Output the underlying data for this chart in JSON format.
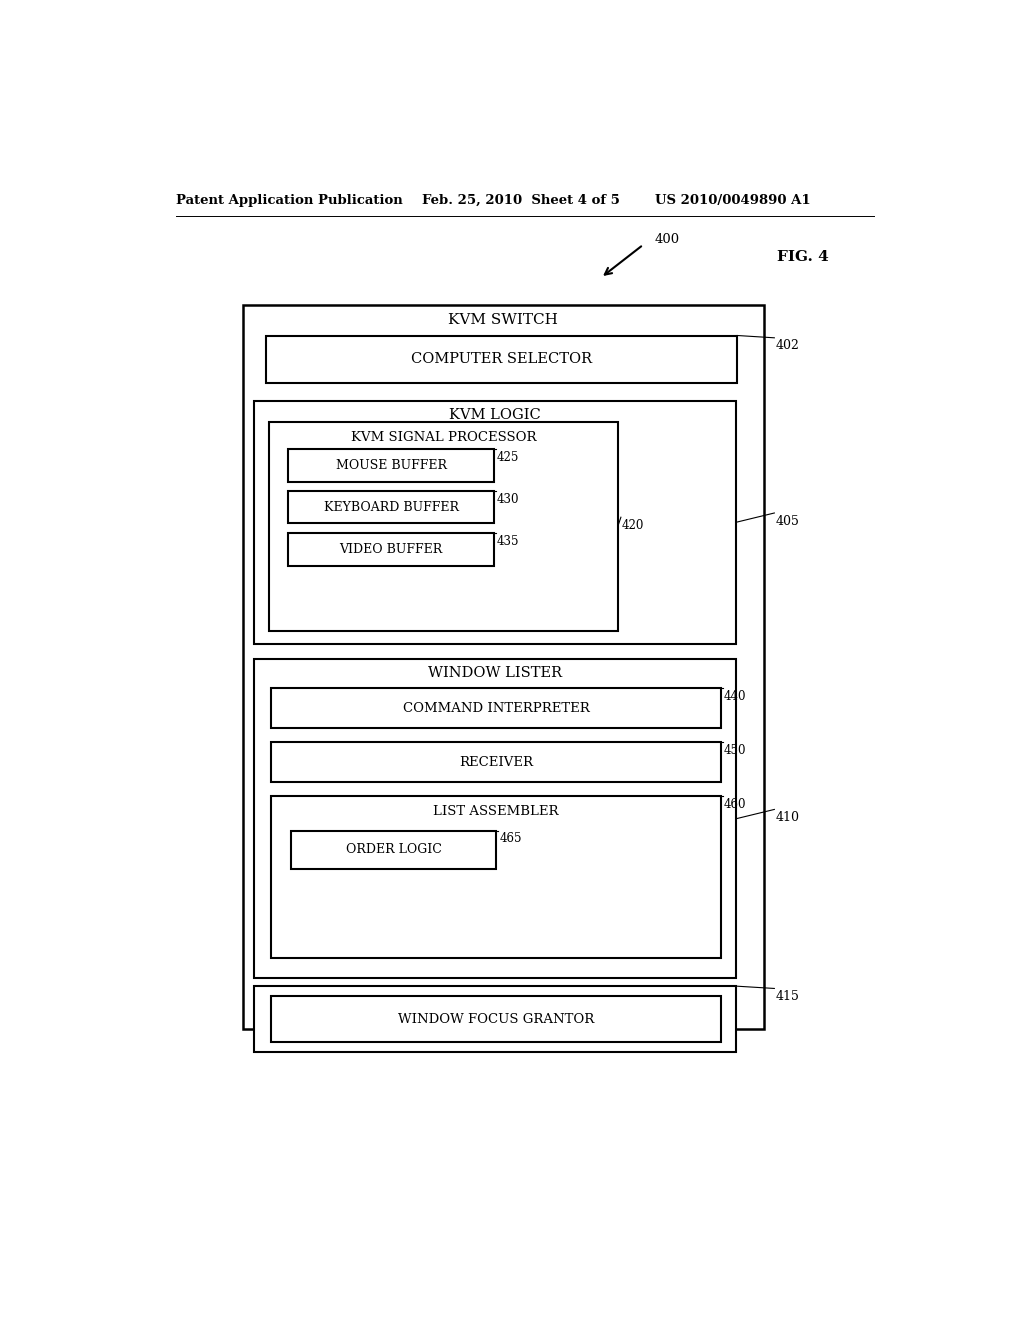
{
  "bg_color": "#ffffff",
  "header_line1": "Patent Application Publication",
  "header_date": "Feb. 25, 2010  Sheet 4 of 5",
  "header_patent": "US 2010/0049890 A1",
  "fig_label": "FIG. 4",
  "fig_num": "400"
}
